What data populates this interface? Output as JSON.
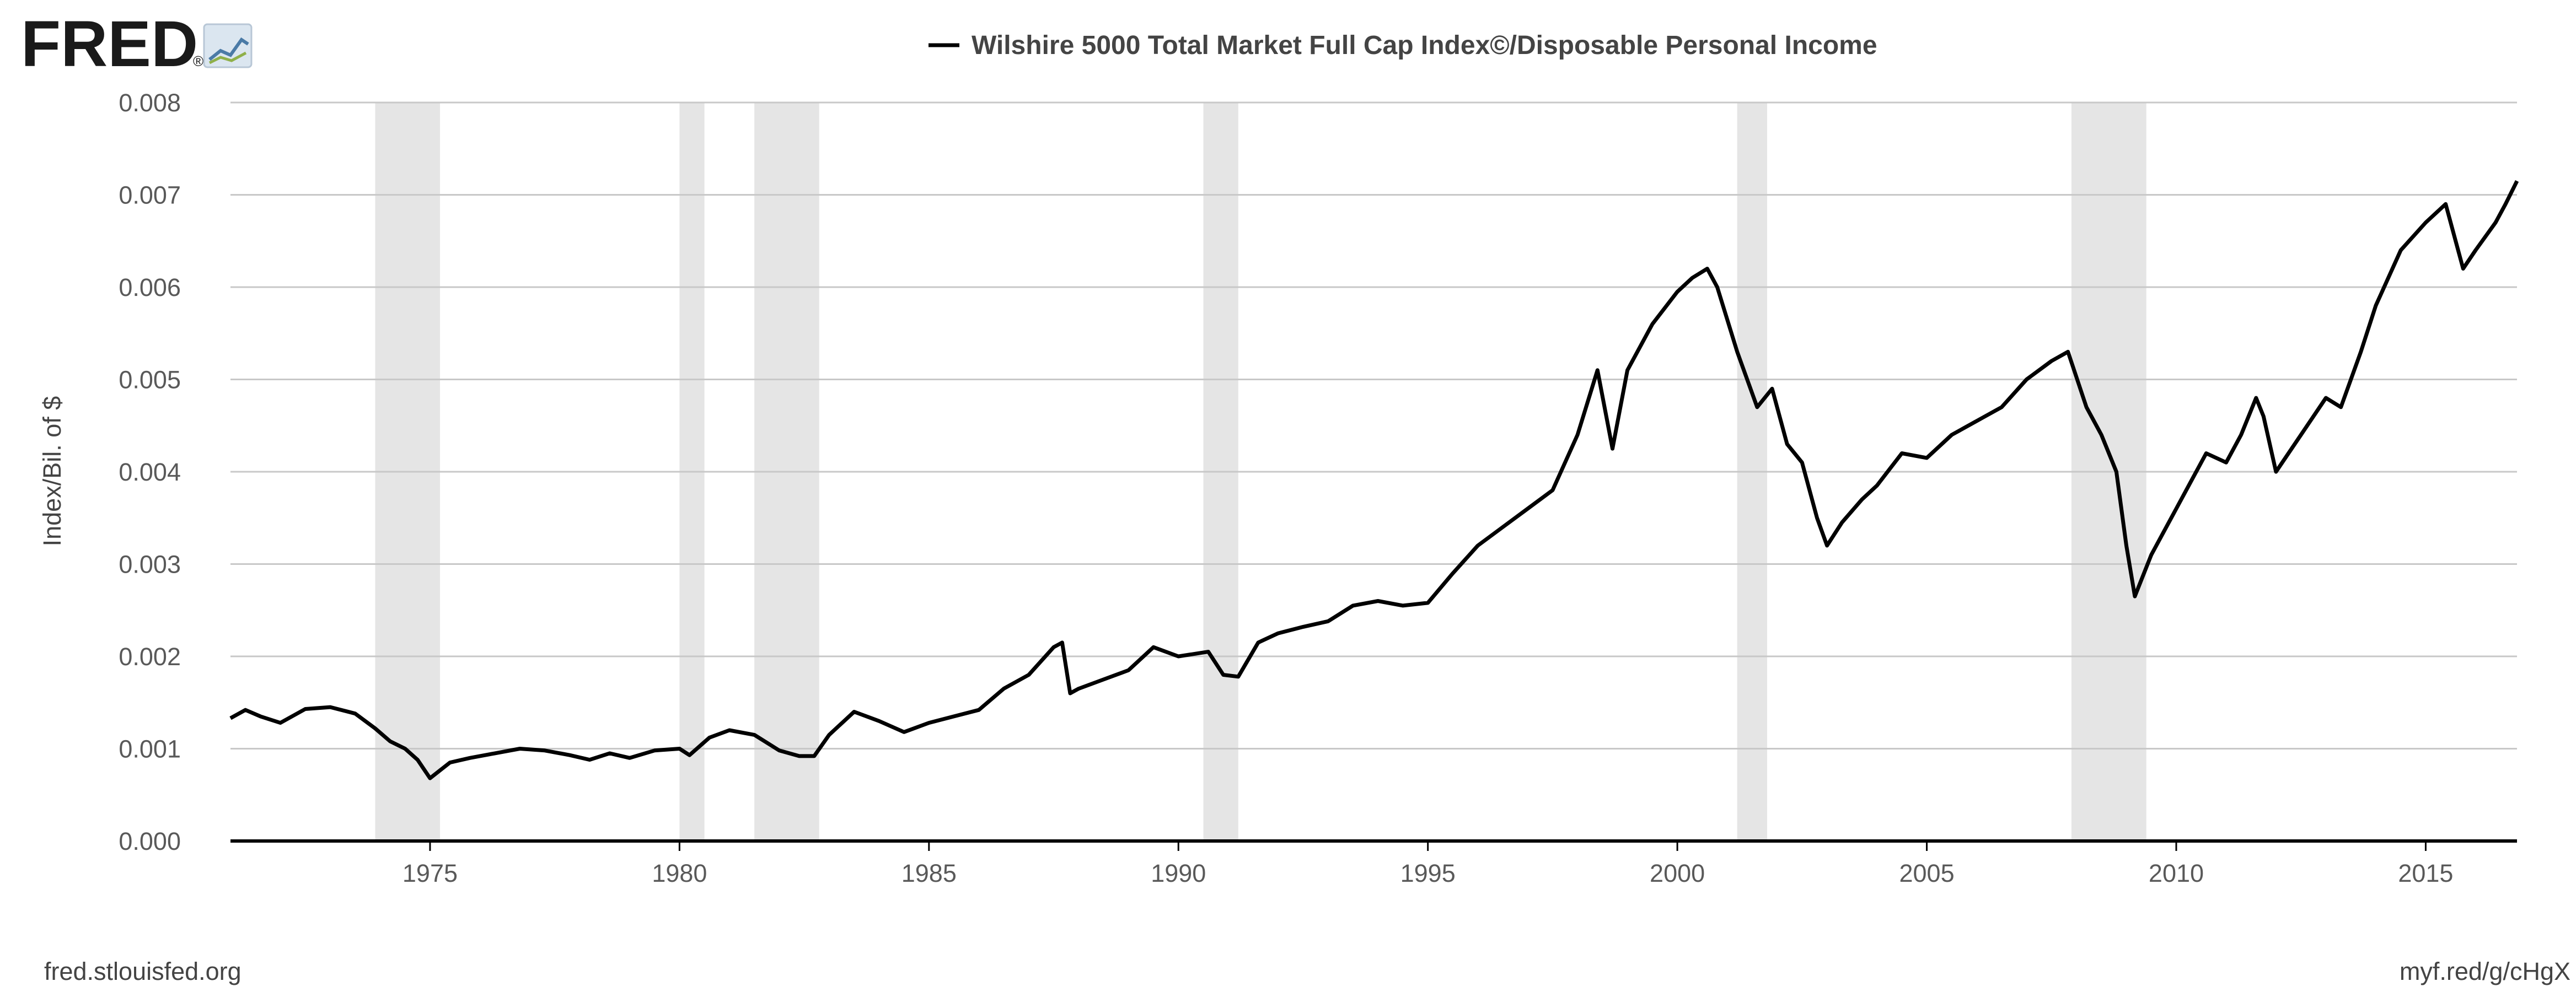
{
  "brand": {
    "logo_text": "FRED",
    "logo_mark": "®"
  },
  "footer": {
    "source": "fred.stlouisfed.org",
    "short_link": "myf.red/g/cHgX"
  },
  "chart_data": {
    "type": "line",
    "title": "",
    "legend": [
      "Wilshire 5000 Total Market Full Cap Index©/Disposable Personal Income"
    ],
    "legend_position": "top-center",
    "xlabel": "",
    "ylabel": "Index/Bil. of $",
    "xlim": [
      1971.0,
      2016.83
    ],
    "ylim": [
      0,
      0.008
    ],
    "grid": true,
    "x_ticks": [
      "1975",
      "1980",
      "1985",
      "1990",
      "1995",
      "2000",
      "2005",
      "2010",
      "2015"
    ],
    "y_ticks": [
      "0.000",
      "0.001",
      "0.002",
      "0.003",
      "0.004",
      "0.005",
      "0.006",
      "0.007",
      "0.008"
    ],
    "line_color": "#000000",
    "recession_color": "#e5e5e5",
    "recessions": [
      [
        1973.9,
        1975.2
      ],
      [
        1980.0,
        1980.5
      ],
      [
        1981.5,
        1982.8
      ],
      [
        1990.5,
        1991.2
      ],
      [
        2001.2,
        2001.8
      ],
      [
        2007.9,
        2009.4
      ]
    ],
    "series": [
      {
        "name": "Wilshire 5000 Total Market Full Cap Index©/Disposable Personal Income",
        "x": [
          1971.0,
          1971.3,
          1971.6,
          1972.0,
          1972.5,
          1973.0,
          1973.5,
          1973.9,
          1974.2,
          1974.5,
          1974.75,
          1975.0,
          1975.4,
          1975.8,
          1976.3,
          1976.8,
          1977.3,
          1977.8,
          1978.2,
          1978.6,
          1979.0,
          1979.5,
          1980.0,
          1980.2,
          1980.6,
          1981.0,
          1981.5,
          1982.0,
          1982.4,
          1982.7,
          1983.0,
          1983.5,
          1984.0,
          1984.5,
          1985.0,
          1985.5,
          1986.0,
          1986.5,
          1987.0,
          1987.5,
          1987.67,
          1987.83,
          1988.0,
          1988.5,
          1989.0,
          1989.5,
          1990.0,
          1990.6,
          1990.9,
          1991.2,
          1991.6,
          1992.0,
          1992.5,
          1993.0,
          1993.5,
          1994.0,
          1994.5,
          1995.0,
          1995.5,
          1996.0,
          1996.5,
          1997.0,
          1997.5,
          1998.0,
          1998.4,
          1998.7,
          1999.0,
          1999.5,
          2000.0,
          2000.3,
          2000.6,
          2000.8,
          2001.2,
          2001.6,
          2001.9,
          2002.2,
          2002.5,
          2002.8,
          2003.0,
          2003.3,
          2003.7,
          2004.0,
          2004.5,
          2005.0,
          2005.5,
          2006.0,
          2006.5,
          2007.0,
          2007.5,
          2007.83,
          2008.2,
          2008.5,
          2008.8,
          2009.0,
          2009.17,
          2009.5,
          2010.0,
          2010.3,
          2010.6,
          2011.0,
          2011.3,
          2011.6,
          2011.75,
          2012.0,
          2012.5,
          2013.0,
          2013.3,
          2013.7,
          2014.0,
          2014.5,
          2015.0,
          2015.4,
          2015.6,
          2015.75,
          2016.0,
          2016.4,
          2016.6,
          2016.83
        ],
        "y": [
          0.00133,
          0.00142,
          0.00135,
          0.00128,
          0.00143,
          0.00145,
          0.00138,
          0.00122,
          0.00108,
          0.001,
          0.00088,
          0.00068,
          0.00085,
          0.0009,
          0.00095,
          0.001,
          0.00098,
          0.00093,
          0.00088,
          0.00095,
          0.0009,
          0.00098,
          0.001,
          0.00093,
          0.00112,
          0.0012,
          0.00115,
          0.00098,
          0.00092,
          0.00092,
          0.00115,
          0.0014,
          0.0013,
          0.00118,
          0.00128,
          0.00135,
          0.00142,
          0.00165,
          0.0018,
          0.0021,
          0.00215,
          0.0016,
          0.00165,
          0.00175,
          0.00185,
          0.0021,
          0.002,
          0.00205,
          0.0018,
          0.00178,
          0.00215,
          0.00225,
          0.00232,
          0.00238,
          0.00255,
          0.0026,
          0.00255,
          0.00258,
          0.0029,
          0.0032,
          0.0034,
          0.0036,
          0.0038,
          0.0044,
          0.0051,
          0.00425,
          0.0051,
          0.0056,
          0.00595,
          0.0061,
          0.0062,
          0.006,
          0.0053,
          0.0047,
          0.0049,
          0.0043,
          0.0041,
          0.0035,
          0.0032,
          0.00345,
          0.0037,
          0.00385,
          0.0042,
          0.00415,
          0.0044,
          0.00455,
          0.0047,
          0.005,
          0.0052,
          0.0053,
          0.0047,
          0.0044,
          0.004,
          0.0032,
          0.00265,
          0.0031,
          0.0036,
          0.0039,
          0.0042,
          0.0041,
          0.0044,
          0.0048,
          0.0046,
          0.004,
          0.0044,
          0.0048,
          0.0047,
          0.0053,
          0.0058,
          0.0064,
          0.0067,
          0.0069,
          0.0065,
          0.0062,
          0.0064,
          0.0067,
          0.0069,
          0.00715
        ]
      }
    ]
  }
}
